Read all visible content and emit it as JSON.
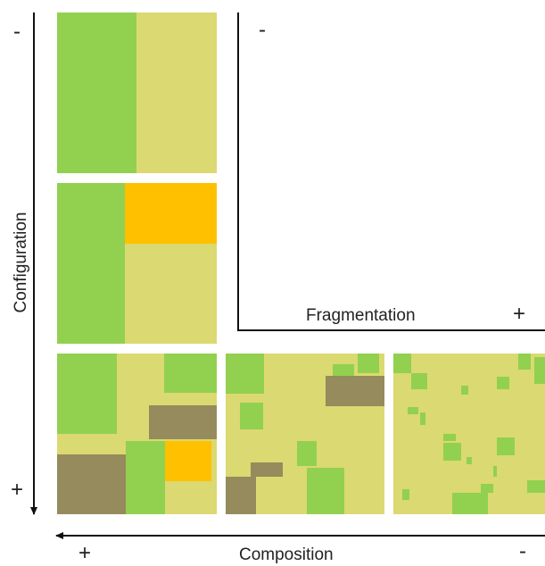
{
  "axes": {
    "vertical_label": "Configuration",
    "horizontal_label": "Composition",
    "inner_label": "Fragmentation",
    "signs": {
      "config_top": "-",
      "config_bottom": "+",
      "comp_left": "+",
      "comp_right": "-",
      "frag_top": "-",
      "frag_right": "+"
    }
  },
  "colors": {
    "green": "#92d050",
    "khaki": "#dbd971",
    "orange": "#ffc000",
    "brown": "#958b5c",
    "axis": "#111111"
  }
}
